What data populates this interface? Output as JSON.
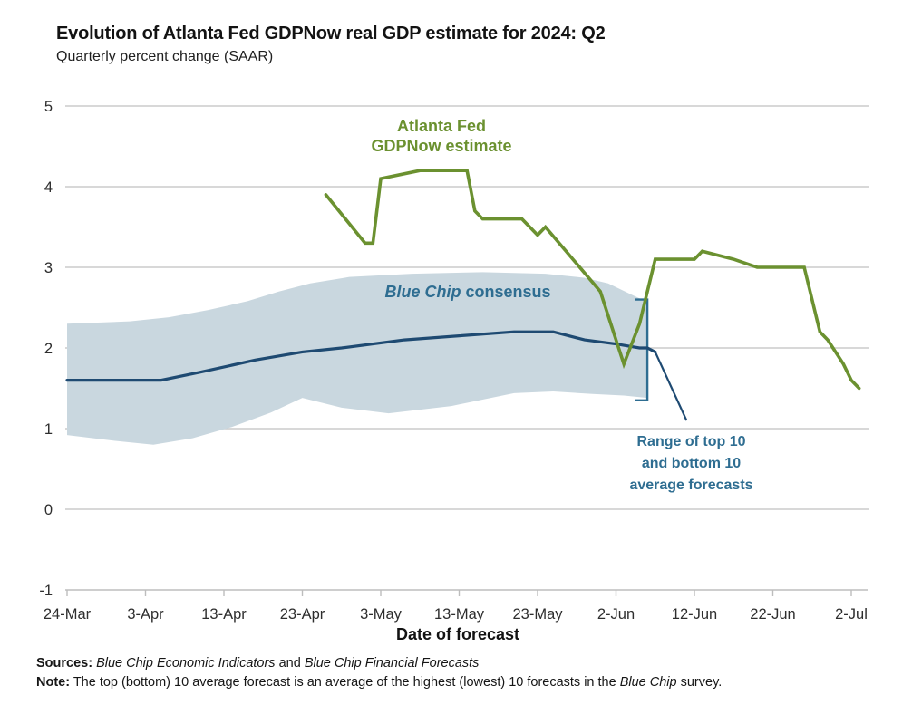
{
  "chart_data": {
    "type": "line",
    "title": "Evolution of Atlanta Fed GDPNow real GDP estimate for 2024: Q2",
    "subtitle": "Quarterly percent change (SAAR)",
    "xlabel": "Date of forecast",
    "ylabel": "Quarterly percent change (SAAR)",
    "ylim": [
      -1,
      5
    ],
    "grid": "horizontal gridlines at integer values 0 through 5",
    "legend_position": "labels annotated directly on chart",
    "y_ticks": [
      "5",
      "4",
      "3",
      "2",
      "1",
      "0",
      "-1"
    ],
    "x_ticks": [
      "24-Mar",
      "3-Apr",
      "13-Apr",
      "23-Apr",
      "3-May",
      "13-May",
      "23-May",
      "2-Jun",
      "12-Jun",
      "22-Jun",
      "2-Jul"
    ],
    "style": {
      "grid_color": "#cbcbcb",
      "axis_color": "#bdbdbd",
      "tick_label_color": "#2e2e2e"
    },
    "series": [
      {
        "name": "Atlanta Fed GDPNow estimate",
        "color": "#6b9130",
        "width": 3.6,
        "points": [
          [
            "26-Apr",
            3.9
          ],
          [
            "1-May",
            3.3
          ],
          [
            "2-May",
            3.3
          ],
          [
            "3-May",
            4.1
          ],
          [
            "8-May",
            4.2
          ],
          [
            "14-May",
            4.2
          ],
          [
            "15-May",
            3.7
          ],
          [
            "16-May",
            3.6
          ],
          [
            "21-May",
            3.6
          ],
          [
            "23-May",
            3.4
          ],
          [
            "24-May",
            3.5
          ],
          [
            "31-May",
            2.7
          ],
          [
            "3-Jun",
            1.8
          ],
          [
            "5-Jun",
            2.3
          ],
          [
            "7-Jun",
            3.1
          ],
          [
            "12-Jun",
            3.1
          ],
          [
            "13-Jun",
            3.2
          ],
          [
            "17-Jun",
            3.1
          ],
          [
            "20-Jun",
            3.0
          ],
          [
            "26-Jun",
            3.0
          ],
          [
            "28-Jun",
            2.2
          ],
          [
            "29-Jun",
            2.1
          ],
          [
            "1-Jul",
            1.8
          ],
          [
            "2-Jul",
            1.6
          ],
          [
            "3-Jul",
            1.5
          ]
        ]
      },
      {
        "name": "Blue Chip consensus",
        "color": "#1e4a72",
        "width": 3.2,
        "points": [
          [
            "24-Mar",
            1.6
          ],
          [
            "5-Apr",
            1.6
          ],
          [
            "10-Apr",
            1.7
          ],
          [
            "17-Apr",
            1.85
          ],
          [
            "23-Apr",
            1.95
          ],
          [
            "28-Apr",
            2.0
          ],
          [
            "6-May",
            2.1
          ],
          [
            "13-May",
            2.15
          ],
          [
            "20-May",
            2.2
          ],
          [
            "25-May",
            2.2
          ],
          [
            "29-May",
            2.1
          ],
          [
            "2-Jun",
            2.05
          ],
          [
            "5-Jun",
            2.0
          ],
          [
            "6-Jun",
            2.0
          ],
          [
            "7-Jun",
            1.95
          ]
        ]
      }
    ],
    "band": {
      "name": "Range of top 10 and bottom 10 average forecasts",
      "fill": "#c9d7df",
      "top": [
        [
          "24-Mar",
          2.3
        ],
        [
          "1-Apr",
          2.33
        ],
        [
          "6-Apr",
          2.38
        ],
        [
          "11-Apr",
          2.47
        ],
        [
          "16-Apr",
          2.58
        ],
        [
          "20-Apr",
          2.7
        ],
        [
          "24-Apr",
          2.8
        ],
        [
          "29-Apr",
          2.88
        ],
        [
          "7-May",
          2.92
        ],
        [
          "16-May",
          2.94
        ],
        [
          "24-May",
          2.92
        ],
        [
          "29-May",
          2.87
        ],
        [
          "1-Jun",
          2.8
        ],
        [
          "4-Jun",
          2.66
        ],
        [
          "6-Jun",
          2.57
        ]
      ],
      "bottom": [
        [
          "24-Mar",
          0.92
        ],
        [
          "30-Mar",
          0.85
        ],
        [
          "4-Apr",
          0.8
        ],
        [
          "9-Apr",
          0.88
        ],
        [
          "14-Apr",
          1.02
        ],
        [
          "19-Apr",
          1.2
        ],
        [
          "23-Apr",
          1.38
        ],
        [
          "28-Apr",
          1.26
        ],
        [
          "4-May",
          1.19
        ],
        [
          "12-May",
          1.28
        ],
        [
          "20-May",
          1.44
        ],
        [
          "25-May",
          1.46
        ],
        [
          "30-May",
          1.43
        ],
        [
          "3-Jun",
          1.41
        ],
        [
          "6-Jun",
          1.38
        ]
      ]
    },
    "bracket": {
      "date": "6-Jun",
      "from": 1.35,
      "to": 2.6,
      "color": "#2e6d91"
    },
    "leader": {
      "color": "#1e4a72",
      "points": [
        [
          "7-Jun",
          1.95
        ],
        [
          "11-Jun",
          1.1
        ]
      ]
    }
  },
  "annotations": {
    "gdpnow": {
      "line1": "Atlanta Fed",
      "line2": "GDPNow estimate",
      "color": "#6b9130"
    },
    "bluechip": {
      "italic": "Blue Chip",
      "rest": " consensus",
      "color": "#2e6d91"
    },
    "range": {
      "line1": "Range of top 10",
      "line2": "and bottom 10",
      "line3": "average forecasts",
      "color": "#2e6d91"
    }
  },
  "footer": {
    "sources_label": "Sources:",
    "sources_space": " ",
    "sources_italic1": "Blue Chip Economic Indicators",
    "sources_and": " and ",
    "sources_italic2": "Blue Chip Financial Forecasts",
    "note_label": "Note:",
    "note_text": " The top (bottom) 10 average forecast is an average of the highest (lowest) 10 forecasts in the ",
    "note_italic": "Blue Chip",
    "note_tail": " survey."
  }
}
